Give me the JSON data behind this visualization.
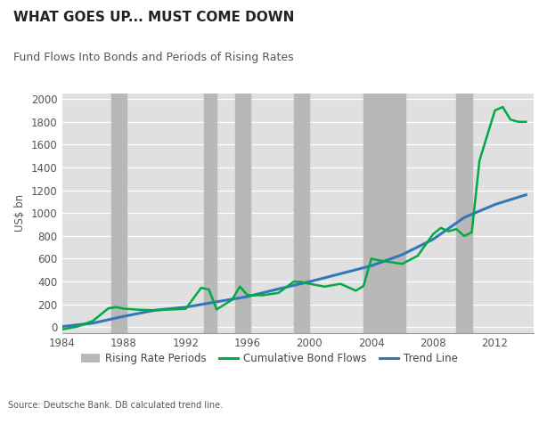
{
  "title": "WHAT GOES UP... MUST COME DOWN",
  "subtitle": "Fund Flows Into Bonds and Periods of Rising Rates",
  "source": "Source: Deutsche Bank. DB calculated trend line.",
  "ylabel": "US$ bn",
  "xlim": [
    1984,
    2014.5
  ],
  "ylim": [
    -50,
    2050
  ],
  "yticks": [
    0,
    200,
    400,
    600,
    800,
    1000,
    1200,
    1400,
    1600,
    1800,
    2000
  ],
  "xticks": [
    1984,
    1988,
    1992,
    1996,
    2000,
    2004,
    2008,
    2012
  ],
  "plot_bg_color": "#e0e0e0",
  "rising_rate_periods": [
    [
      1987.2,
      1988.2
    ],
    [
      1993.2,
      1994.0
    ],
    [
      1995.2,
      1996.2
    ],
    [
      1999.0,
      2000.0
    ],
    [
      2003.5,
      2006.2
    ],
    [
      2009.5,
      2010.5
    ]
  ],
  "rising_rate_color": "#b8b8b8",
  "bond_flows_color": "#00aa44",
  "trend_line_color": "#3377bb",
  "bond_flows_x": [
    1984,
    1985,
    1986,
    1987,
    1987.5,
    1988,
    1989,
    1990,
    1991,
    1992,
    1993,
    1993.5,
    1994,
    1995,
    1995.5,
    1996,
    1997,
    1998,
    1999,
    1999.5,
    2000,
    2001,
    2002,
    2003,
    2003.5,
    2004,
    2004.5,
    2005,
    2006,
    2007,
    2008,
    2008.5,
    2009,
    2009.5,
    2010,
    2010.5,
    2011,
    2012,
    2012.5,
    2013,
    2013.5,
    2014
  ],
  "bond_flows_y": [
    -20,
    5,
    55,
    165,
    175,
    162,
    152,
    148,
    155,
    160,
    345,
    330,
    155,
    240,
    355,
    280,
    280,
    300,
    400,
    395,
    380,
    355,
    380,
    320,
    360,
    600,
    585,
    575,
    555,
    625,
    815,
    870,
    840,
    860,
    800,
    830,
    1460,
    1900,
    1930,
    1820,
    1800,
    1800
  ],
  "trend_x": [
    1984,
    1986,
    1988,
    1990,
    1992,
    1994,
    1996,
    1998,
    2000,
    2002,
    2004,
    2006,
    2008,
    2010,
    2012,
    2014
  ],
  "trend_y": [
    5,
    35,
    95,
    148,
    175,
    222,
    268,
    335,
    398,
    468,
    538,
    635,
    770,
    960,
    1075,
    1160
  ],
  "legend_gray_label": "Rising Rate Periods",
  "legend_green_label": "Cumulative Bond Flows",
  "legend_blue_label": "Trend Line"
}
